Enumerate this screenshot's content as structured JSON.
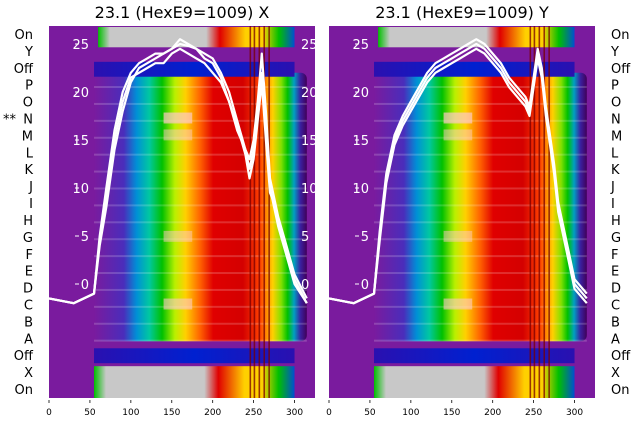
{
  "chart_data": [
    {
      "type": "heatmap",
      "title": "23.1 (HexE9=1009) X",
      "row_labels": [
        "On",
        "Y",
        "Off",
        "P",
        "O",
        "N",
        "M",
        "L",
        "K",
        "J",
        "I",
        "H",
        "G",
        "F",
        "E",
        "D",
        "C",
        "B",
        "A",
        "Off",
        "X",
        "On"
      ],
      "marked_rows": {
        "N": "**"
      },
      "x_ticks": [
        0,
        50,
        100,
        150,
        200,
        250,
        300
      ],
      "x_range": [
        0,
        325
      ],
      "y_ticks": [
        0,
        5,
        10,
        15,
        20,
        25
      ],
      "colormap": "nipy_spectral",
      "profile_color": "#ffffff",
      "profiles": [
        {
          "x": [
            0,
            30,
            55,
            62,
            70,
            80,
            90,
            100,
            110,
            120,
            130,
            140,
            150,
            160,
            170,
            180,
            190,
            200,
            210,
            220,
            230,
            240,
            245,
            250,
            255,
            260,
            265,
            270,
            275,
            280,
            290,
            300,
            315
          ],
          "y": [
            -1.5,
            -2,
            -1,
            4,
            8,
            14,
            18,
            21,
            22.5,
            23,
            23.5,
            24,
            24.5,
            25,
            24.8,
            24.5,
            23.5,
            23,
            21.5,
            19,
            16,
            14,
            12,
            14,
            18,
            22,
            16,
            10,
            8,
            6,
            3,
            0,
            -2
          ]
        },
        {
          "x": [
            0,
            30,
            55,
            62,
            70,
            80,
            90,
            100,
            110,
            120,
            130,
            140,
            150,
            160,
            170,
            180,
            190,
            200,
            210,
            220,
            230,
            240,
            245,
            250,
            255,
            260,
            265,
            270,
            275,
            280,
            290,
            300,
            315
          ],
          "y": [
            -1.5,
            -2,
            -1,
            5,
            10,
            16,
            20,
            22,
            23,
            23.5,
            24,
            24,
            24.5,
            25.5,
            25,
            24.5,
            24,
            23.5,
            22,
            20,
            17,
            14,
            13,
            15,
            19,
            24,
            18,
            11,
            9,
            7,
            4,
            1,
            -1.5
          ]
        },
        {
          "x": [
            0,
            30,
            55,
            62,
            70,
            80,
            90,
            100,
            110,
            120,
            130,
            140,
            150,
            160,
            170,
            180,
            190,
            200,
            210,
            220,
            230,
            240,
            245,
            250,
            255,
            260,
            265,
            270,
            275,
            280,
            290,
            300,
            315
          ],
          "y": [
            -1.5,
            -2,
            -1,
            4.5,
            9,
            15,
            19,
            21.5,
            22,
            22.5,
            23,
            23,
            24,
            24.5,
            24,
            23.5,
            23,
            22,
            21,
            19,
            16.5,
            13.5,
            11,
            13,
            17,
            21,
            15,
            9.5,
            8.5,
            6.5,
            3.5,
            0.5,
            -2
          ]
        }
      ]
    },
    {
      "type": "heatmap",
      "title": "23.1 (HexE9=1009) Y",
      "row_labels": [
        "On",
        "Y",
        "Off",
        "P",
        "O",
        "N",
        "M",
        "L",
        "K",
        "J",
        "I",
        "H",
        "G",
        "F",
        "E",
        "D",
        "C",
        "B",
        "A",
        "Off",
        "X",
        "On"
      ],
      "x_ticks": [
        0,
        50,
        100,
        150,
        200,
        250,
        300
      ],
      "x_range": [
        0,
        325
      ],
      "y_ticks": [
        0,
        5,
        10,
        15,
        20,
        25
      ],
      "colormap": "nipy_spectral",
      "profile_color": "#ffffff",
      "profiles": [
        {
          "x": [
            0,
            30,
            55,
            62,
            70,
            80,
            90,
            100,
            110,
            120,
            130,
            140,
            150,
            160,
            170,
            180,
            190,
            200,
            210,
            220,
            230,
            240,
            245,
            250,
            255,
            260,
            265,
            270,
            275,
            280,
            290,
            300,
            315
          ],
          "y": [
            -1.5,
            -2,
            -1,
            5,
            11,
            15,
            17,
            18.5,
            20,
            21.5,
            22.5,
            23,
            23.5,
            24,
            24.5,
            25,
            24.5,
            23.5,
            22.5,
            21,
            20,
            19,
            18,
            21,
            24,
            22,
            18,
            15,
            12,
            8,
            4,
            0,
            -1.5
          ]
        },
        {
          "x": [
            0,
            30,
            55,
            62,
            70,
            80,
            90,
            100,
            110,
            120,
            130,
            140,
            150,
            160,
            170,
            180,
            190,
            200,
            210,
            220,
            230,
            240,
            245,
            250,
            255,
            260,
            265,
            270,
            275,
            280,
            290,
            300,
            315
          ],
          "y": [
            -1.5,
            -2,
            -1,
            5.5,
            11.5,
            15.5,
            17.5,
            19,
            20.5,
            22,
            23,
            23.5,
            24,
            24.5,
            25,
            25.5,
            25,
            24,
            23,
            21.5,
            20.5,
            19.5,
            18.5,
            21.5,
            24.5,
            22.5,
            18.5,
            15.5,
            12.5,
            8.5,
            4.5,
            0.5,
            -1
          ]
        },
        {
          "x": [
            0,
            30,
            55,
            62,
            70,
            80,
            90,
            100,
            110,
            120,
            130,
            140,
            150,
            160,
            170,
            180,
            190,
            200,
            210,
            220,
            230,
            240,
            245,
            250,
            255,
            260,
            265,
            270,
            275,
            280,
            290,
            300,
            315
          ],
          "y": [
            -1.5,
            -2,
            -1,
            4.5,
            10.5,
            14.5,
            16.5,
            18,
            19.5,
            21,
            22,
            22.5,
            23,
            23.5,
            24,
            24.5,
            24,
            23,
            22,
            20.5,
            19.5,
            18.5,
            17.5,
            20.5,
            23.5,
            21.5,
            17.5,
            14.5,
            11.5,
            7.5,
            3.5,
            -0.5,
            -2
          ]
        }
      ]
    }
  ]
}
